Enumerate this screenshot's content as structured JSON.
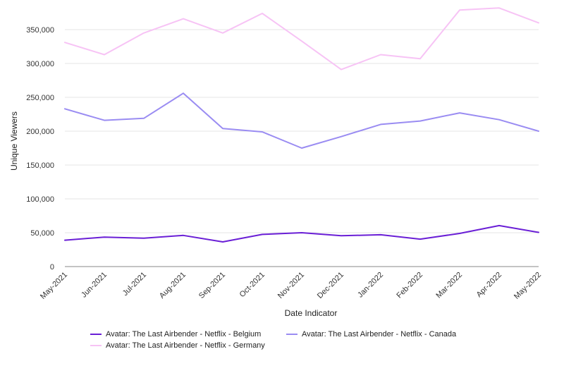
{
  "chart_data": {
    "type": "line",
    "xlabel": "Date Indicator",
    "ylabel": "Unique Viewers",
    "categories": [
      "May-2021",
      "Jun-2021",
      "Jul-2021",
      "Aug-2021",
      "Sep-2021",
      "Oct-2021",
      "Nov-2021",
      "Dec-2021",
      "Jan-2022",
      "Feb-2022",
      "Mar-2022",
      "Apr-2022",
      "May-2022"
    ],
    "ylim": [
      0,
      375000
    ],
    "yticks": [
      0,
      50000,
      100000,
      150000,
      200000,
      250000,
      300000,
      350000
    ],
    "ytick_labels": [
      "0",
      "50,000",
      "100,000",
      "150,000",
      "200,000",
      "250,000",
      "300,000",
      "350,000"
    ],
    "grid": true,
    "legend_position": "bottom",
    "series": [
      {
        "name": "Avatar: The Last Airbender - Netflix - Belgium",
        "color": "#6a1fd6",
        "values": [
          39000,
          43500,
          42000,
          46000,
          36500,
          47500,
          50000,
          45500,
          47000,
          40500,
          49000,
          60500,
          50500
        ]
      },
      {
        "name": "Avatar: The Last Airbender - Netflix - Canada",
        "color": "#9a8cf2",
        "values": [
          233000,
          216000,
          219000,
          256000,
          204000,
          199000,
          175000,
          192000,
          210000,
          215000,
          227000,
          217000,
          200000
        ]
      },
      {
        "name": "Avatar: The Last Airbender - Netflix - Germany",
        "color": "#f7c3f5",
        "values": [
          331000,
          313000,
          345000,
          366000,
          345000,
          374000,
          333000,
          291000,
          313000,
          307000,
          379000,
          382000,
          360000
        ]
      }
    ]
  }
}
